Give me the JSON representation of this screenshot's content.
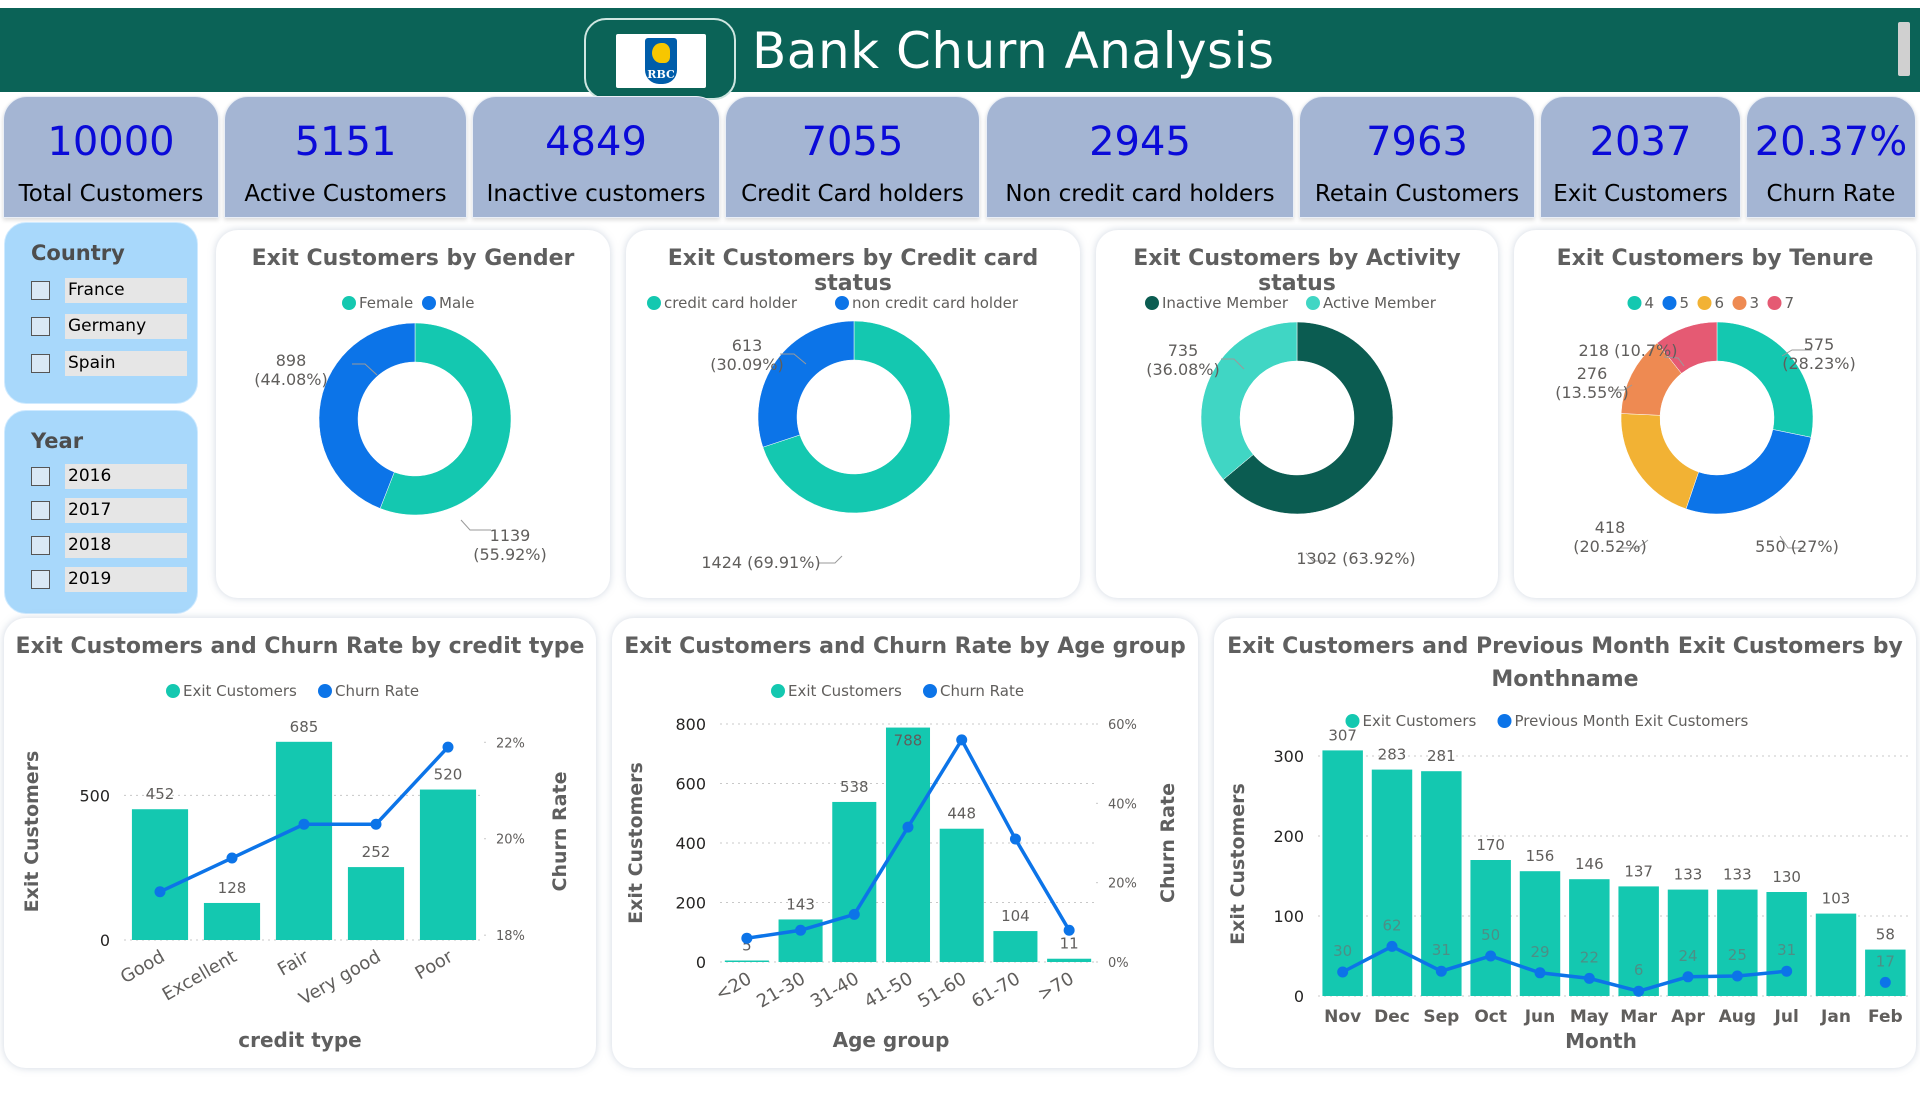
{
  "header": {
    "title": "Bank Churn Analysis",
    "logo_text": "RBC"
  },
  "colors": {
    "teal": "#14c8b0",
    "blue": "#0c74e8",
    "dark": "#0b5c51",
    "lightteal": "#40d6c4",
    "yellow": "#f2b234",
    "orange": "#ee8a52",
    "pink": "#e55a73",
    "kpi_bg": "#a4b5d3",
    "kpi_value": "#0a0ad8"
  },
  "kpis": [
    {
      "value": "10000",
      "label": "Total Customers"
    },
    {
      "value": "5151",
      "label": "Active Customers"
    },
    {
      "value": "4849",
      "label": "Inactive customers"
    },
    {
      "value": "7055",
      "label": "Credit Card holders"
    },
    {
      "value": "2945",
      "label": "Non credit card holders"
    },
    {
      "value": "7963",
      "label": "Retain Customers"
    },
    {
      "value": "2037",
      "label": "Exit Customers"
    },
    {
      "value": "20.37%",
      "label": "Churn Rate"
    }
  ],
  "slicers": {
    "country": {
      "title": "Country",
      "items": [
        "France",
        "Germany",
        "Spain"
      ]
    },
    "year": {
      "title": "Year",
      "items": [
        "2016",
        "2017",
        "2018",
        "2019"
      ]
    }
  },
  "chart_data": [
    {
      "type": "pie",
      "title": "Exit Customers by Gender",
      "legend": [
        "Female",
        "Male"
      ],
      "slices": [
        {
          "name": "Female",
          "value": 1139,
          "label": "1139",
          "pct": "(55.92%)"
        },
        {
          "name": "Male",
          "value": 898,
          "label": "898",
          "pct": "(44.08%)"
        }
      ]
    },
    {
      "type": "pie",
      "title": "Exit Customers by Credit card status",
      "legend": [
        "credit card holder",
        "non credit card holder"
      ],
      "slices": [
        {
          "name": "credit card holder",
          "value": 1424,
          "label": "1424 (69.91%)"
        },
        {
          "name": "non credit card holder",
          "value": 613,
          "label": "613",
          "pct": "(30.09%)"
        }
      ]
    },
    {
      "type": "pie",
      "title": "Exit Customers by Activity status",
      "legend": [
        "Inactive Member",
        "Active Member"
      ],
      "slices": [
        {
          "name": "Inactive Member",
          "value": 1302,
          "label": "1302 (63.92%)"
        },
        {
          "name": "Active Member",
          "value": 735,
          "label": "735",
          "pct": "(36.08%)"
        }
      ]
    },
    {
      "type": "pie",
      "title": "Exit Customers by Tenure",
      "legend": [
        "4",
        "5",
        "6",
        "3",
        "7"
      ],
      "slices": [
        {
          "name": "4",
          "value": 575,
          "label": "575",
          "pct": "(28.23%)"
        },
        {
          "name": "5",
          "value": 550,
          "label": "550 (27%)"
        },
        {
          "name": "6",
          "value": 418,
          "label": "418",
          "pct": "(20.52%)"
        },
        {
          "name": "3",
          "value": 276,
          "label": "276",
          "pct": "(13.55%)"
        },
        {
          "name": "7",
          "value": 218,
          "label": "218 (10.7%)"
        }
      ]
    },
    {
      "type": "bar",
      "title": "Exit Customers and Churn Rate by credit type",
      "legend": [
        "Exit Customers",
        "Churn Rate"
      ],
      "xlabel": "credit type",
      "ylabel": "Exit Customers",
      "y2label": "Churn Rate",
      "categories": [
        "Good",
        "Excellent",
        "Fair",
        "Very good",
        "Poor"
      ],
      "series": [
        {
          "name": "Exit Customers",
          "values": [
            452,
            128,
            685,
            252,
            520
          ]
        },
        {
          "name": "Churn Rate",
          "values": [
            18.9,
            19.6,
            20.3,
            20.3,
            21.9
          ]
        }
      ],
      "yticks": [
        "0",
        "500"
      ],
      "y2ticks": [
        "18%",
        "20%",
        "22%"
      ],
      "ylim": [
        0,
        750
      ],
      "y2lim": [
        17.9,
        22.4
      ]
    },
    {
      "type": "bar",
      "title": "Exit Customers and Churn Rate by Age group",
      "legend": [
        "Exit Customers",
        "Churn Rate"
      ],
      "xlabel": "Age group",
      "ylabel": "Exit Customers",
      "y2label": "Churn Rate",
      "categories": [
        "<20",
        "21-30",
        "31-40",
        "41-50",
        "51-60",
        "61-70",
        ">70"
      ],
      "series": [
        {
          "name": "Exit Customers",
          "values": [
            5,
            143,
            538,
            788,
            448,
            104,
            11
          ]
        },
        {
          "name": "Churn Rate",
          "values": [
            6,
            8,
            12,
            34,
            56,
            31,
            8
          ]
        }
      ],
      "data_labels": [
        "5",
        "143",
        "538",
        "788",
        "448",
        "104",
        "11"
      ],
      "yticks": [
        "0",
        "200",
        "400",
        "600",
        "800"
      ],
      "y2ticks": [
        "0%",
        "20%",
        "40%",
        "60%"
      ],
      "ylim": [
        0,
        800
      ],
      "y2lim": [
        0,
        60
      ]
    },
    {
      "type": "bar",
      "title": "Exit Customers and Previous Month Exit Customers by",
      "title_line2": "Monthname",
      "legend": [
        "Exit Customers",
        "Previous Month Exit Customers"
      ],
      "xlabel": "Month",
      "ylabel": "Exit Customers",
      "categories": [
        "Nov",
        "Dec",
        "Sep",
        "Oct",
        "Jun",
        "May",
        "Mar",
        "Apr",
        "Aug",
        "Jul",
        "Jan",
        "Feb"
      ],
      "series": [
        {
          "name": "Exit Customers",
          "values": [
            307,
            283,
            281,
            170,
            156,
            146,
            137,
            133,
            133,
            130,
            103,
            58
          ]
        },
        {
          "name": "Previous Month Exit Customers",
          "values": [
            30,
            62,
            31,
            50,
            29,
            22,
            6,
            24,
            25,
            31,
            null,
            17
          ]
        }
      ],
      "yticks": [
        "0",
        "100",
        "200",
        "300"
      ],
      "ylim": [
        0,
        330
      ]
    }
  ]
}
